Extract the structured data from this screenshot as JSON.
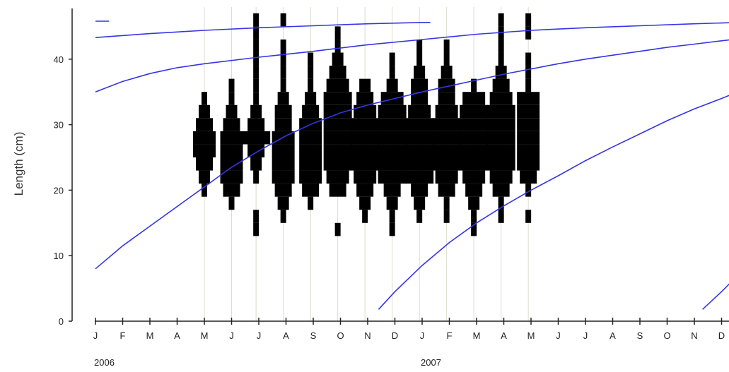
{
  "chart_data": {
    "type": "bar",
    "title": "",
    "xlabel": "",
    "ylabel": "Length (cm)",
    "ylim": [
      0,
      47
    ],
    "yticks": [
      0,
      10,
      20,
      30,
      40
    ],
    "x_months": [
      "J",
      "F",
      "M",
      "A",
      "M",
      "J",
      "J",
      "A",
      "S",
      "O",
      "N",
      "D",
      "J",
      "F",
      "M",
      "A",
      "M",
      "J",
      "J",
      "A",
      "S",
      "O",
      "N",
      "D"
    ],
    "x_years": [
      {
        "label": "2006",
        "month_index": 0
      },
      {
        "label": "2007",
        "month_index": 12
      }
    ],
    "sample_dates_month": [
      4.0,
      5.0,
      5.9,
      6.9,
      7.9,
      8.9,
      9.9,
      10.9,
      11.9,
      12.9,
      13.9,
      14.9,
      15.9
    ],
    "length_class_cm": 2,
    "histograms": [
      {
        "month": 4.0,
        "bins": [
          [
            20,
            1
          ],
          [
            22,
            2
          ],
          [
            24,
            3
          ],
          [
            26,
            4
          ],
          [
            28,
            4
          ],
          [
            30,
            3
          ],
          [
            32,
            2
          ],
          [
            34,
            1
          ]
        ]
      },
      {
        "month": 5.0,
        "bins": [
          [
            18,
            1
          ],
          [
            20,
            3
          ],
          [
            22,
            4
          ],
          [
            24,
            4
          ],
          [
            26,
            4
          ],
          [
            28,
            4
          ],
          [
            30,
            3
          ],
          [
            32,
            2
          ],
          [
            34,
            1
          ],
          [
            36,
            1
          ]
        ]
      },
      {
        "month": 5.9,
        "bins": [
          [
            14,
            1
          ],
          [
            16,
            1
          ],
          [
            22,
            1
          ],
          [
            24,
            2
          ],
          [
            26,
            3
          ],
          [
            28,
            5
          ],
          [
            30,
            3
          ],
          [
            32,
            2
          ],
          [
            34,
            1
          ],
          [
            36,
            1
          ],
          [
            38,
            1
          ],
          [
            40,
            1
          ],
          [
            42,
            1
          ],
          [
            44,
            1
          ],
          [
            46,
            1
          ]
        ]
      },
      {
        "month": 6.9,
        "bins": [
          [
            16,
            1
          ],
          [
            18,
            2
          ],
          [
            20,
            3
          ],
          [
            22,
            4
          ],
          [
            24,
            4
          ],
          [
            26,
            4
          ],
          [
            28,
            4
          ],
          [
            30,
            3
          ],
          [
            32,
            3
          ],
          [
            34,
            2
          ],
          [
            36,
            1
          ],
          [
            38,
            1
          ],
          [
            40,
            1
          ],
          [
            42,
            1
          ],
          [
            46,
            1
          ]
        ]
      },
      {
        "month": 7.9,
        "bins": [
          [
            18,
            1
          ],
          [
            20,
            3
          ],
          [
            22,
            4
          ],
          [
            24,
            4
          ],
          [
            26,
            4
          ],
          [
            28,
            4
          ],
          [
            30,
            4
          ],
          [
            32,
            3
          ],
          [
            34,
            2
          ],
          [
            36,
            1
          ],
          [
            38,
            1
          ],
          [
            40,
            1
          ]
        ]
      },
      {
        "month": 8.9,
        "bins": [
          [
            14,
            1
          ],
          [
            20,
            3
          ],
          [
            22,
            4
          ],
          [
            24,
            5
          ],
          [
            26,
            5
          ],
          [
            28,
            5
          ],
          [
            30,
            5
          ],
          [
            32,
            5
          ],
          [
            34,
            5
          ],
          [
            36,
            4
          ],
          [
            38,
            3
          ],
          [
            40,
            2
          ],
          [
            42,
            1
          ],
          [
            44,
            1
          ]
        ]
      },
      {
        "month": 9.9,
        "bins": [
          [
            16,
            1
          ],
          [
            18,
            2
          ],
          [
            20,
            3
          ],
          [
            22,
            4
          ],
          [
            24,
            5
          ],
          [
            26,
            5
          ],
          [
            28,
            5
          ],
          [
            30,
            5
          ],
          [
            32,
            4
          ],
          [
            34,
            3
          ],
          [
            36,
            2
          ]
        ]
      },
      {
        "month": 10.9,
        "bins": [
          [
            14,
            1
          ],
          [
            16,
            1
          ],
          [
            18,
            2
          ],
          [
            20,
            3
          ],
          [
            22,
            5
          ],
          [
            24,
            5
          ],
          [
            26,
            5
          ],
          [
            28,
            5
          ],
          [
            30,
            5
          ],
          [
            32,
            5
          ],
          [
            34,
            4
          ],
          [
            36,
            2
          ],
          [
            38,
            1
          ],
          [
            40,
            1
          ]
        ]
      },
      {
        "month": 11.9,
        "bins": [
          [
            16,
            1
          ],
          [
            18,
            2
          ],
          [
            20,
            3
          ],
          [
            22,
            5
          ],
          [
            24,
            5
          ],
          [
            26,
            5
          ],
          [
            28,
            5
          ],
          [
            30,
            5
          ],
          [
            32,
            4
          ],
          [
            34,
            3
          ],
          [
            36,
            3
          ],
          [
            38,
            2
          ],
          [
            40,
            1
          ],
          [
            42,
            1
          ]
        ]
      },
      {
        "month": 12.9,
        "bins": [
          [
            16,
            1
          ],
          [
            18,
            1
          ],
          [
            20,
            3
          ],
          [
            22,
            4
          ],
          [
            24,
            5
          ],
          [
            26,
            5
          ],
          [
            28,
            5
          ],
          [
            30,
            5
          ],
          [
            32,
            4
          ],
          [
            34,
            3
          ],
          [
            36,
            3
          ],
          [
            38,
            2
          ],
          [
            40,
            1
          ],
          [
            42,
            1
          ]
        ]
      },
      {
        "month": 13.9,
        "bins": [
          [
            14,
            1
          ],
          [
            16,
            1
          ],
          [
            18,
            2
          ],
          [
            20,
            3
          ],
          [
            22,
            4
          ],
          [
            24,
            5
          ],
          [
            26,
            5
          ],
          [
            28,
            5
          ],
          [
            30,
            5
          ],
          [
            32,
            5
          ],
          [
            34,
            4
          ],
          [
            36,
            1
          ]
        ]
      },
      {
        "month": 14.9,
        "bins": [
          [
            16,
            1
          ],
          [
            18,
            1
          ],
          [
            20,
            3
          ],
          [
            22,
            4
          ],
          [
            24,
            5
          ],
          [
            26,
            5
          ],
          [
            28,
            5
          ],
          [
            30,
            5
          ],
          [
            32,
            5
          ],
          [
            34,
            4
          ],
          [
            36,
            3
          ],
          [
            38,
            2
          ],
          [
            40,
            1
          ],
          [
            42,
            1
          ],
          [
            44,
            1
          ],
          [
            46,
            1
          ]
        ]
      },
      {
        "month": 15.9,
        "bins": [
          [
            16,
            1
          ],
          [
            20,
            1
          ],
          [
            22,
            3
          ],
          [
            24,
            4
          ],
          [
            26,
            4
          ],
          [
            28,
            4
          ],
          [
            30,
            4
          ],
          [
            32,
            4
          ],
          [
            34,
            4
          ],
          [
            36,
            1
          ],
          [
            38,
            1
          ],
          [
            40,
            1
          ],
          [
            44,
            1
          ],
          [
            46,
            1
          ]
        ]
      }
    ],
    "growth_curves": [
      {
        "points": [
          [
            0,
            45.8
          ],
          [
            0.5,
            45.8
          ]
        ]
      },
      {
        "points": [
          [
            0,
            43.3
          ],
          [
            2,
            43.9
          ],
          [
            4,
            44.4
          ],
          [
            6,
            44.8
          ],
          [
            8,
            45.1
          ],
          [
            10,
            45.4
          ],
          [
            12,
            45.6
          ],
          [
            12.3,
            45.6
          ]
        ]
      },
      {
        "points": [
          [
            0,
            35
          ],
          [
            1,
            36.6
          ],
          [
            2,
            37.8
          ],
          [
            3,
            38.7
          ],
          [
            4,
            39.3
          ],
          [
            6,
            40.3
          ],
          [
            8,
            41.2
          ],
          [
            10,
            42.2
          ],
          [
            12,
            43
          ],
          [
            14,
            43.8
          ],
          [
            16,
            44.4
          ],
          [
            18,
            44.8
          ],
          [
            20,
            45.1
          ],
          [
            22,
            45.4
          ],
          [
            23.6,
            45.6
          ]
        ]
      },
      {
        "points": [
          [
            0,
            8
          ],
          [
            1,
            11.5
          ],
          [
            2,
            14.5
          ],
          [
            3,
            17.5
          ],
          [
            4,
            20.5
          ],
          [
            5,
            23.5
          ],
          [
            6,
            26
          ],
          [
            7,
            28.3
          ],
          [
            8,
            30.2
          ],
          [
            9,
            31.8
          ],
          [
            10,
            33
          ],
          [
            11,
            34
          ],
          [
            12,
            35
          ],
          [
            13,
            35.9
          ],
          [
            14,
            36.8
          ],
          [
            15,
            37.7
          ],
          [
            16,
            38.5
          ],
          [
            17,
            39.3
          ],
          [
            18,
            40
          ],
          [
            19,
            40.6
          ],
          [
            20,
            41.2
          ],
          [
            21,
            41.8
          ],
          [
            22,
            42.3
          ],
          [
            23,
            42.8
          ],
          [
            23.6,
            43.1
          ]
        ]
      },
      {
        "points": [
          [
            10.4,
            1.8
          ],
          [
            11,
            4.5
          ],
          [
            12,
            8.5
          ],
          [
            13,
            12
          ],
          [
            14,
            15
          ],
          [
            15,
            17.6
          ],
          [
            16,
            20
          ],
          [
            17,
            22.2
          ],
          [
            18,
            24.5
          ],
          [
            19,
            26.6
          ],
          [
            20,
            28.6
          ],
          [
            21,
            30.6
          ],
          [
            22,
            32.4
          ],
          [
            23,
            34
          ],
          [
            23.6,
            35
          ]
        ]
      },
      {
        "points": [
          [
            22.3,
            1.8
          ],
          [
            23,
            4.5
          ],
          [
            23.6,
            7
          ]
        ]
      }
    ],
    "colors": {
      "bars": "#000000",
      "curves": "#3535e6",
      "axis": "#222222",
      "gridlines": "#dcdccc",
      "labels": "#222222"
    },
    "grid": "vertical lines at sampling dates"
  }
}
